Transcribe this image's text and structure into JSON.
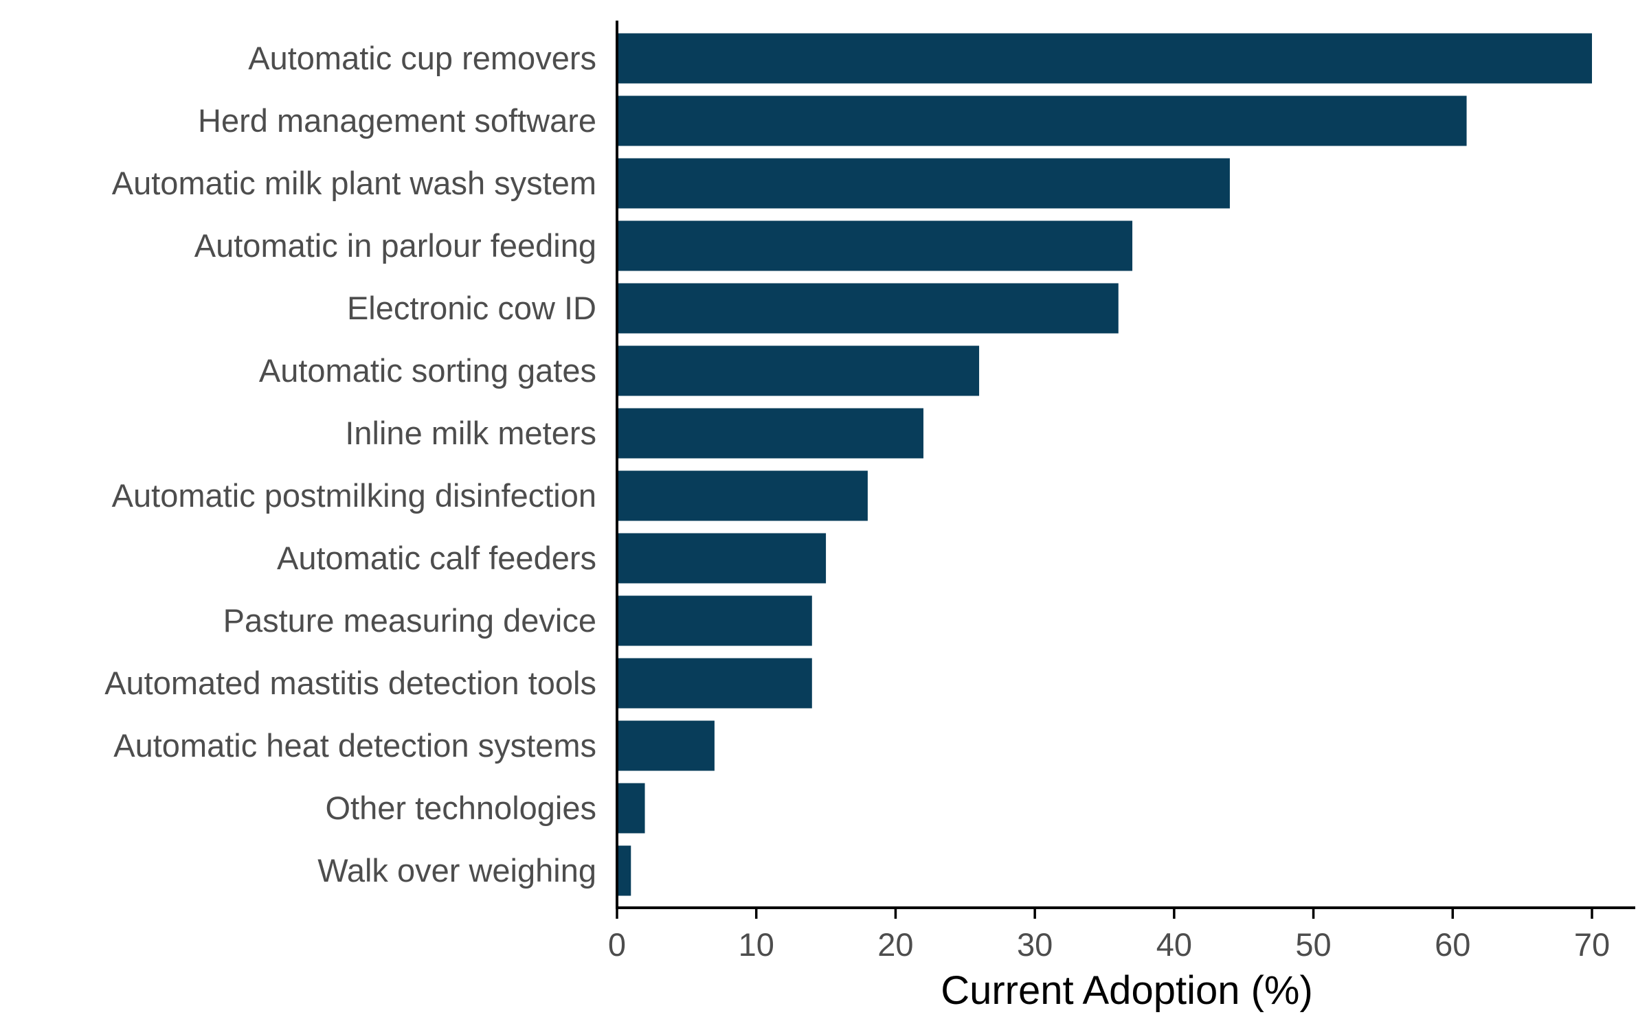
{
  "chart_data": {
    "type": "bar",
    "orientation": "horizontal",
    "categories": [
      "Automatic cup removers",
      "Herd management software",
      "Automatic milk plant wash system",
      "Automatic in parlour feeding",
      "Electronic cow ID",
      "Automatic sorting gates",
      "Inline milk meters",
      "Automatic postmilking disinfection",
      "Automatic calf feeders",
      "Pasture measuring device",
      "Automated mastitis detection tools",
      "Automatic heat detection systems",
      "Other technologies",
      "Walk over weighing"
    ],
    "values": [
      70,
      61,
      44,
      37,
      36,
      26,
      22,
      18,
      15,
      14,
      14,
      7,
      2,
      1
    ],
    "xlabel": "Current Adoption (%)",
    "ylabel": "",
    "title": "",
    "xlim": [
      0,
      73
    ],
    "xticks": [
      0,
      10,
      20,
      30,
      40,
      50,
      60,
      70
    ],
    "xtick_labels": [
      "0",
      "10",
      "20",
      "30",
      "40",
      "50",
      "60",
      "70"
    ],
    "bar_color": "#083d5a",
    "grid": false,
    "legend": "none"
  }
}
